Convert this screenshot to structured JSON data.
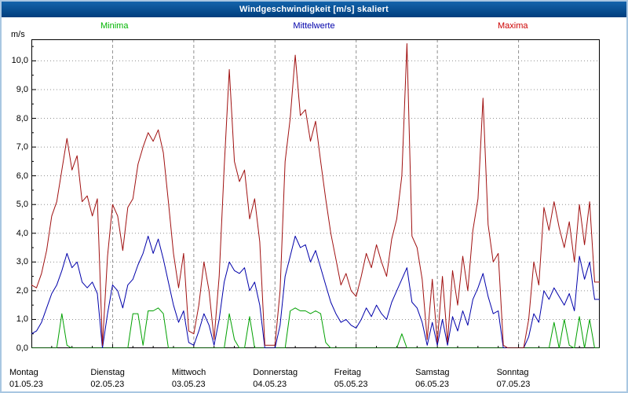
{
  "window": {
    "title": "Windgeschwindigkeit [m/s] skaliert"
  },
  "legend": [
    {
      "label": "Minima",
      "color": "#00b400"
    },
    {
      "label": "Mittelwerte",
      "color": "#0000aa"
    },
    {
      "label": "Maxima",
      "color": "#cc0000"
    }
  ],
  "y_axis": {
    "unit": "m/s",
    "ticks": [
      "0,0",
      "1,0",
      "2,0",
      "3,0",
      "4,0",
      "5,0",
      "6,0",
      "7,0",
      "8,0",
      "9,0",
      "10,0"
    ]
  },
  "x_axis": {
    "days": [
      {
        "name": "Montag",
        "date": "01.05.23"
      },
      {
        "name": "Dienstag",
        "date": "02.05.23"
      },
      {
        "name": "Mittwoch",
        "date": "03.05.23"
      },
      {
        "name": "Donnerstag",
        "date": "04.05.23"
      },
      {
        "name": "Freitag",
        "date": "05.05.23"
      },
      {
        "name": "Samstag",
        "date": "06.05.23"
      },
      {
        "name": "Sonntag",
        "date": "07.05.23"
      }
    ]
  },
  "chart_data": {
    "type": "line",
    "title": "Windgeschwindigkeit [m/s] skaliert",
    "xlabel": "",
    "ylabel": "m/s",
    "ylim": [
      0,
      10.75
    ],
    "x_start_days": 0,
    "x_step_days": 0.0625,
    "x_span_days": 7,
    "grid": true,
    "legend_position": "top",
    "series": [
      {
        "name": "Minima",
        "color": "#00a000",
        "values": [
          0,
          0,
          0,
          0,
          0,
          0,
          1.2,
          0.1,
          0,
          0,
          0,
          0,
          0,
          0,
          0,
          0,
          0,
          0,
          0,
          0,
          1.2,
          1.2,
          0.1,
          1.3,
          1.3,
          1.4,
          1.2,
          0,
          0,
          0,
          0,
          0,
          0,
          0,
          0,
          0,
          0,
          0,
          0,
          1.2,
          0.3,
          0,
          0,
          1.1,
          0,
          0,
          0,
          0,
          0,
          0,
          0,
          1.3,
          1.4,
          1.3,
          1.3,
          1.2,
          1.3,
          1.2,
          0.2,
          0,
          0,
          0,
          0,
          0,
          0,
          0,
          0,
          0,
          0,
          0,
          0,
          0,
          0,
          0.5,
          0,
          0,
          0,
          0,
          0,
          0,
          0,
          0,
          0,
          0,
          0,
          0,
          0,
          0,
          0,
          0,
          0,
          0,
          0,
          0,
          0,
          0,
          0,
          0,
          0,
          0,
          0,
          0,
          0,
          0.9,
          0,
          1.0,
          0.1,
          0,
          1.1,
          0,
          1.0,
          0,
          0
        ]
      },
      {
        "name": "Mittelwerte",
        "color": "#0000aa",
        "values": [
          0.5,
          0.6,
          0.9,
          1.4,
          1.9,
          2.2,
          2.7,
          3.3,
          2.8,
          3.0,
          2.3,
          2.1,
          2.3,
          1.9,
          0.0,
          1.2,
          2.2,
          2.0,
          1.4,
          2.2,
          2.4,
          2.9,
          3.3,
          3.9,
          3.3,
          3.8,
          3.1,
          2.3,
          1.5,
          0.9,
          1.3,
          0.2,
          0.1,
          0.6,
          1.2,
          0.8,
          0.1,
          1.0,
          2.3,
          3.0,
          2.7,
          2.6,
          2.8,
          2.0,
          2.3,
          1.5,
          0.0,
          0.0,
          0.0,
          0.8,
          2.5,
          3.2,
          3.9,
          3.5,
          3.6,
          3.0,
          3.4,
          2.8,
          2.2,
          1.6,
          1.2,
          0.9,
          1.0,
          0.8,
          0.7,
          1.0,
          1.4,
          1.1,
          1.5,
          1.2,
          1.0,
          1.6,
          2.0,
          2.4,
          2.8,
          1.6,
          1.4,
          0.9,
          0.1,
          0.9,
          0.1,
          1.0,
          0.1,
          1.1,
          0.6,
          1.3,
          0.8,
          1.7,
          2.1,
          2.6,
          1.8,
          1.2,
          1.3,
          0.0,
          0.0,
          0.0,
          0.0,
          0.0,
          0.4,
          1.2,
          0.9,
          2.0,
          1.7,
          2.1,
          1.8,
          1.5,
          1.9,
          1.3,
          3.2,
          2.4,
          3.0,
          1.7,
          1.7
        ]
      },
      {
        "name": "Maxima",
        "color": "#a01010",
        "values": [
          2.2,
          2.1,
          2.6,
          3.4,
          4.6,
          5.1,
          6.2,
          7.3,
          6.2,
          6.7,
          5.1,
          5.3,
          4.6,
          5.2,
          0.1,
          3.2,
          5.0,
          4.6,
          3.4,
          4.9,
          5.2,
          6.4,
          7.0,
          7.5,
          7.2,
          7.6,
          6.8,
          5.1,
          3.3,
          2.1,
          3.3,
          0.6,
          0.5,
          1.5,
          3.0,
          2.0,
          0.3,
          2.5,
          6.3,
          9.7,
          6.5,
          5.8,
          6.2,
          4.5,
          5.2,
          3.7,
          0.1,
          0.1,
          0.1,
          2.0,
          6.5,
          8.0,
          10.2,
          8.1,
          8.3,
          7.2,
          7.9,
          6.5,
          5.2,
          4.0,
          3.1,
          2.2,
          2.6,
          2.0,
          1.8,
          2.5,
          3.3,
          2.8,
          3.6,
          3.0,
          2.5,
          3.8,
          4.5,
          6.0,
          10.6,
          3.9,
          3.5,
          2.4,
          0.3,
          2.4,
          0.2,
          2.5,
          0.2,
          2.7,
          1.5,
          3.2,
          2.0,
          4.1,
          5.2,
          8.7,
          4.3,
          3.0,
          3.3,
          0.1,
          0.0,
          0.0,
          0.0,
          0.0,
          1.0,
          3.0,
          2.2,
          4.9,
          4.1,
          5.1,
          4.2,
          3.5,
          4.4,
          3.0,
          5.0,
          3.6,
          5.1,
          2.3,
          2.3
        ]
      }
    ]
  }
}
